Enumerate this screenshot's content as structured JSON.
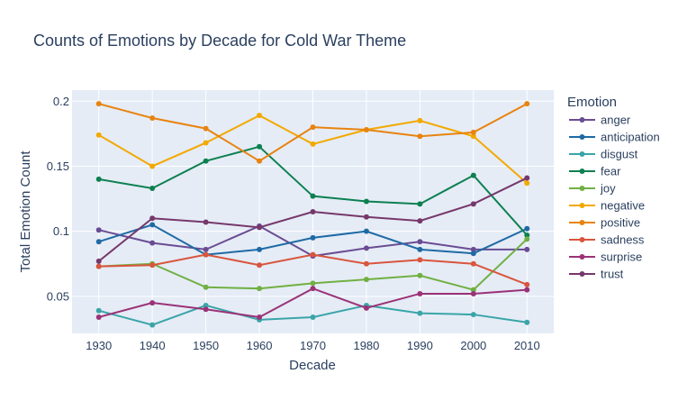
{
  "chart_data": {
    "type": "line",
    "title": "Counts of Emotions by Decade for Cold War Theme",
    "xlabel": "Decade",
    "ylabel": "Total Emotion Count",
    "x": [
      1930,
      1940,
      1950,
      1960,
      1970,
      1980,
      1990,
      2000,
      2010
    ],
    "x_ticks": [
      "1930",
      "1940",
      "1950",
      "1960",
      "1970",
      "1980",
      "1990",
      "2000",
      "2010"
    ],
    "y_ticks": [
      "0.05",
      "0.1",
      "0.15",
      "0.2"
    ],
    "y_tick_values": [
      0.05,
      0.1,
      0.15,
      0.2
    ],
    "xlim": [
      1925,
      2015
    ],
    "ylim": [
      0.0215,
      0.2085
    ],
    "grid": true,
    "legend_title": "Emotion",
    "legend_position": "right",
    "series": [
      {
        "name": "anger",
        "color": "#6a4c93",
        "values": [
          0.101,
          0.091,
          0.086,
          0.104,
          0.081,
          0.087,
          0.092,
          0.086,
          0.086
        ]
      },
      {
        "name": "anticipation",
        "color": "#1f6aa5",
        "values": [
          0.092,
          0.105,
          0.082,
          0.086,
          0.095,
          0.1,
          0.086,
          0.083,
          0.102
        ]
      },
      {
        "name": "disgust",
        "color": "#3aa5a8",
        "values": [
          0.039,
          0.028,
          0.043,
          0.032,
          0.034,
          0.043,
          0.037,
          0.036,
          0.03
        ]
      },
      {
        "name": "fear",
        "color": "#0d8050",
        "values": [
          0.14,
          0.133,
          0.154,
          0.165,
          0.127,
          0.123,
          0.121,
          0.143,
          0.097
        ]
      },
      {
        "name": "joy",
        "color": "#71b043",
        "values": [
          0.073,
          0.075,
          0.057,
          0.056,
          0.06,
          0.063,
          0.066,
          0.055,
          0.094
        ]
      },
      {
        "name": "negative",
        "color": "#f2a900",
        "values": [
          0.174,
          0.15,
          0.168,
          0.189,
          0.167,
          0.178,
          0.185,
          0.173,
          0.137
        ]
      },
      {
        "name": "positive",
        "color": "#e8830f",
        "values": [
          0.198,
          0.187,
          0.179,
          0.154,
          0.18,
          0.178,
          0.173,
          0.176,
          0.198
        ]
      },
      {
        "name": "sadness",
        "color": "#d9553d",
        "values": [
          0.073,
          0.074,
          0.082,
          0.074,
          0.082,
          0.075,
          0.078,
          0.075,
          0.059
        ]
      },
      {
        "name": "surprise",
        "color": "#9b3277",
        "values": [
          0.034,
          0.045,
          0.04,
          0.034,
          0.056,
          0.041,
          0.052,
          0.052,
          0.055
        ]
      },
      {
        "name": "trust",
        "color": "#76386b",
        "values": [
          0.077,
          0.11,
          0.107,
          0.103,
          0.115,
          0.111,
          0.108,
          0.121,
          0.141
        ]
      }
    ]
  }
}
